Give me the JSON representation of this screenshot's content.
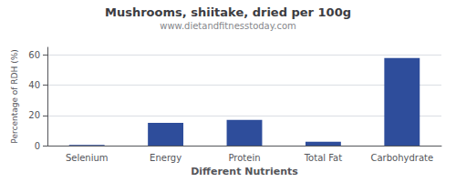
{
  "chart_data": {
    "type": "bar",
    "title": "Mushrooms, shiitake, dried per 100g",
    "subtitle": "www.dietandfitnesstoday.com",
    "xlabel": "Different Nutrients",
    "ylabel": "Percentage of RDH (%)",
    "categories": [
      "Selenium",
      "Energy",
      "Protein",
      "Total Fat",
      "Carbohydrate"
    ],
    "values": [
      0.5,
      15,
      17,
      2.5,
      58
    ],
    "color": "#2e4d9b",
    "ylim": [
      0,
      65
    ],
    "yticks": [
      0,
      20,
      40,
      60
    ],
    "grid": true
  }
}
